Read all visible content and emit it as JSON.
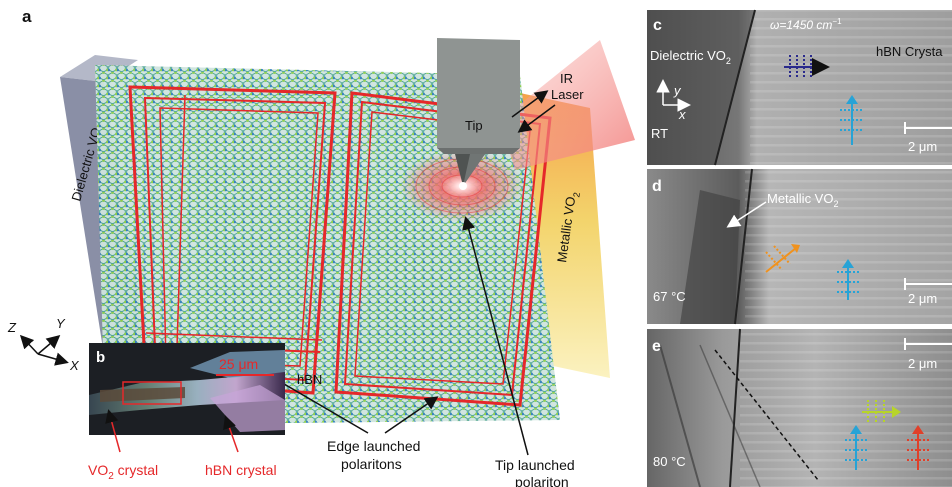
{
  "panel_a": {
    "letter": "a",
    "dielectric": "Dielectric VO",
    "dielectric_sub": "2",
    "metallic": "Metallic VO",
    "metallic_sub": "2",
    "tip": "Tip",
    "ir_laser_line1": "IR",
    "ir_laser_line2": "Laser",
    "hbn": "hBN",
    "edge_line1": "Edge launched",
    "edge_line2": "polaritons",
    "tip_launched_line1": "Tip launched",
    "tip_launched_line2": "polariton",
    "axis_z": "Z",
    "axis_y": "Y",
    "axis_x": "X"
  },
  "panel_b": {
    "letter": "b",
    "scale": "25 μm",
    "vo2_label": "VO",
    "vo2_sub": "2",
    "vo2_rest": " crystal",
    "hbn_label": "hBN crystal"
  },
  "panel_c": {
    "letter": "c",
    "omega": "ω=1450 cm",
    "omega_sup": "−1",
    "dielectric": "Dielectric VO",
    "dielectric_sub": "2",
    "hbn": "hBN Crysta",
    "axis_y": "y",
    "axis_x": "x",
    "temp": "RT",
    "scale": "2 μm"
  },
  "panel_d": {
    "letter": "d",
    "metallic": "Metallic VO",
    "metallic_sub": "2",
    "temp": "67 °C",
    "scale": "2 μm"
  },
  "panel_e": {
    "letter": "e",
    "temp": "80 °C",
    "scale": "2 μm"
  },
  "colors": {
    "red_frame": "#e5282a",
    "dielectric_block": "#8a8fa6",
    "metallic_block": "#f2dc72",
    "arrow_navy": "#2a2a8c",
    "arrow_cyan": "#27a3d6",
    "arrow_orange": "#f0921e",
    "arrow_lime": "#b7d42a",
    "arrow_red": "#e0402a"
  }
}
